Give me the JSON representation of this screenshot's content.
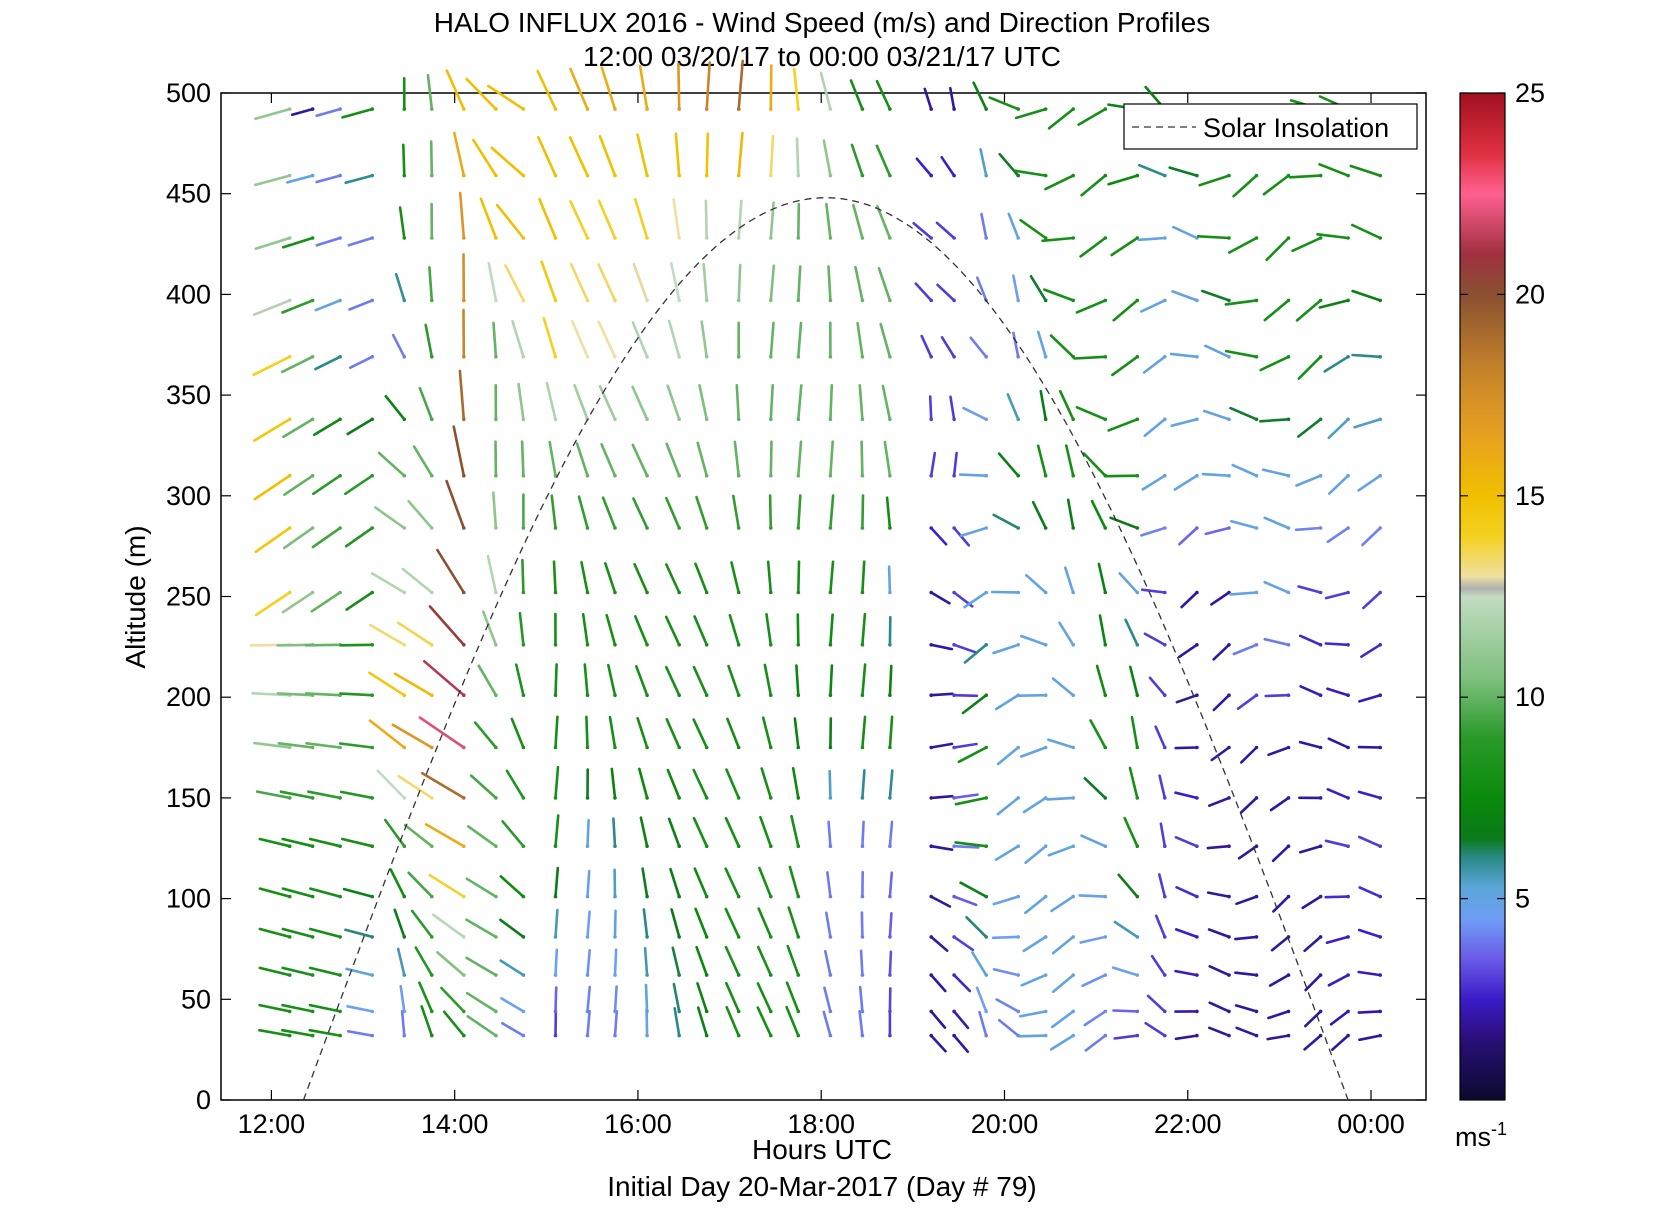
{
  "chart_data": {
    "type": "wind-barb-profile",
    "title_line1": "HALO INFLUX 2016 - Wind Speed (m/s) and Direction Profiles",
    "title_line2": "12:00 03/20/17 to 00:00 03/21/17  UTC",
    "xlabel": "Hours UTC",
    "xlabel_sub": "Initial Day 20-Mar-2017 (Day # 79)",
    "ylabel": "Altitude (m)",
    "x_ticks": [
      "12:00",
      "14:00",
      "16:00",
      "18:00",
      "20:00",
      "22:00",
      "00:00"
    ],
    "x_tick_hours": [
      12,
      14,
      16,
      18,
      20,
      22,
      24
    ],
    "xlim_hours": [
      11.45,
      24.6
    ],
    "y_ticks": [
      0,
      50,
      100,
      150,
      200,
      250,
      300,
      350,
      400,
      450,
      500
    ],
    "ylim": [
      0,
      500
    ],
    "colorbar": {
      "label": "ms-1",
      "label_base": "ms",
      "label_exp": "-1",
      "range": [
        0,
        25
      ],
      "ticks": [
        5,
        10,
        15,
        20,
        25
      ],
      "stops": [
        {
          "v": 0.0,
          "c": "#0a0a2e"
        },
        {
          "v": 1.5,
          "c": "#2a0f78"
        },
        {
          "v": 2.5,
          "c": "#3c1cc8"
        },
        {
          "v": 3.5,
          "c": "#6a5ae8"
        },
        {
          "v": 4.5,
          "c": "#6f9ef5"
        },
        {
          "v": 5.3,
          "c": "#5aa6d6"
        },
        {
          "v": 6.0,
          "c": "#2a8a8a"
        },
        {
          "v": 6.5,
          "c": "#0a7a1a"
        },
        {
          "v": 7.5,
          "c": "#0a8a0a"
        },
        {
          "v": 9.0,
          "c": "#2a9a2a"
        },
        {
          "v": 10.5,
          "c": "#7fc07f"
        },
        {
          "v": 12.5,
          "c": "#c2dcc2"
        },
        {
          "v": 12.7,
          "c": "#b0b0b0"
        },
        {
          "v": 13.0,
          "c": "#f0e0a0"
        },
        {
          "v": 14.0,
          "c": "#f4d020"
        },
        {
          "v": 15.0,
          "c": "#f0c000"
        },
        {
          "v": 16.5,
          "c": "#e8a020"
        },
        {
          "v": 18.0,
          "c": "#c8862a"
        },
        {
          "v": 20.0,
          "c": "#8a5030"
        },
        {
          "v": 21.0,
          "c": "#a03040"
        },
        {
          "v": 22.5,
          "c": "#ff6090"
        },
        {
          "v": 23.5,
          "c": "#e03040"
        },
        {
          "v": 25.0,
          "c": "#a01020"
        }
      ]
    },
    "legend": [
      {
        "label": "Solar Insolation",
        "style": "dashed",
        "color": "#000000"
      }
    ],
    "legend_position": "top-right",
    "solar_insolation": {
      "sunrise_hour": 12.35,
      "sunset_hour": 23.75,
      "peak_hour": 17.95,
      "peak_value": 448
    },
    "barb_times_hours": [
      12.2,
      12.45,
      12.75,
      13.1,
      13.45,
      13.75,
      14.1,
      14.45,
      14.75,
      15.1,
      15.45,
      15.75,
      16.1,
      16.45,
      16.75,
      17.1,
      17.45,
      17.75,
      18.1,
      18.45,
      18.75,
      19.2,
      19.45,
      19.8,
      20.15,
      20.45,
      20.75,
      21.1,
      21.45,
      21.75,
      22.1,
      22.45,
      22.75,
      23.1,
      23.45,
      23.75,
      24.1
    ],
    "barb_altitudes": [
      32,
      44,
      62,
      81,
      101,
      126,
      150,
      175,
      201,
      226,
      252,
      284,
      310,
      338,
      369,
      397,
      428,
      459,
      492
    ],
    "barb_speed_matrix_note": "wind speed (m/s) per altitude row, interpolated by time",
    "speed_profile": [
      {
        "alt": 32,
        "speeds": [
          8,
          8,
          8,
          4,
          4,
          8,
          8,
          10,
          4,
          3,
          4,
          4,
          5,
          6,
          7,
          8,
          8,
          8,
          4,
          4,
          3,
          2,
          2,
          4,
          4,
          5,
          5,
          4,
          3,
          3,
          2,
          2,
          2,
          2,
          2,
          2,
          2
        ]
      },
      {
        "alt": 126,
        "speeds": [
          8,
          8,
          8,
          8,
          9,
          10,
          16,
          10,
          9,
          8,
          5,
          6,
          7,
          7,
          8,
          8,
          8,
          8,
          4,
          4,
          4,
          2,
          4,
          8,
          5,
          5,
          5,
          5,
          8,
          3,
          3,
          2,
          2,
          2,
          2,
          3,
          3
        ]
      },
      {
        "alt": 175,
        "speeds": [
          11,
          10,
          10,
          9,
          16,
          17,
          22,
          9,
          8,
          8,
          8,
          8,
          8,
          8,
          8,
          8,
          8,
          7,
          7,
          8,
          8,
          2,
          3,
          8,
          5,
          5,
          5,
          8,
          8,
          3,
          2,
          2,
          2,
          2,
          2,
          2,
          2
        ]
      },
      {
        "alt": 252,
        "speeds": [
          14,
          11,
          10,
          8,
          12,
          12,
          20,
          12,
          9,
          8,
          8,
          8,
          8,
          8,
          8,
          8,
          8,
          8,
          8,
          8,
          5,
          2,
          3,
          5,
          5,
          5,
          5,
          7,
          5,
          3,
          2,
          2,
          5,
          5,
          3,
          3,
          3
        ]
      },
      {
        "alt": 310,
        "speeds": [
          15,
          10,
          9,
          9,
          10,
          10,
          20,
          10,
          10,
          10,
          10,
          10,
          10,
          10,
          10,
          10,
          10,
          10,
          10,
          10,
          10,
          3,
          3,
          5,
          7,
          8,
          8,
          8,
          8,
          5,
          5,
          5,
          5,
          5,
          5,
          5,
          5
        ]
      },
      {
        "alt": 369,
        "speeds": [
          14,
          10,
          6,
          4,
          4,
          9,
          18,
          10,
          12,
          14,
          13,
          13,
          12,
          12,
          11,
          10,
          10,
          10,
          10,
          10,
          10,
          3,
          3,
          4,
          4,
          5,
          8,
          8,
          8,
          5,
          5,
          5,
          8,
          8,
          8,
          6,
          6
        ]
      },
      {
        "alt": 428,
        "speeds": [
          11,
          8,
          4,
          4,
          8,
          10,
          17,
          15,
          15,
          15,
          14,
          14,
          14,
          13,
          12,
          12,
          11,
          10,
          10,
          10,
          10,
          3,
          3,
          4,
          5,
          8,
          8,
          8,
          8,
          5,
          5,
          8,
          8,
          8,
          8,
          8,
          8
        ]
      },
      {
        "alt": 492,
        "speeds": [
          11,
          2,
          4,
          8,
          8,
          10,
          15,
          15,
          15,
          15,
          16,
          16,
          16,
          17,
          18,
          19,
          16,
          14,
          12,
          8,
          8,
          2,
          2,
          7,
          8,
          8,
          8,
          8,
          7,
          7,
          8,
          8,
          8,
          8,
          8,
          8,
          8
        ]
      }
    ]
  }
}
